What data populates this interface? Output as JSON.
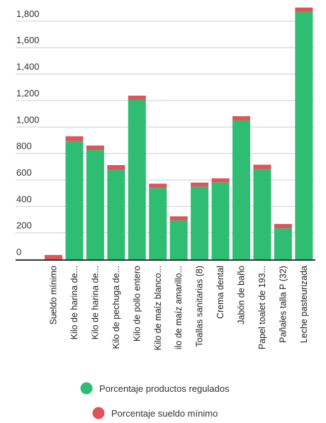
{
  "chart_data": {
    "type": "bar",
    "stacked": true,
    "categories": [
      "Sueldo mínimo",
      "Kilo de harina de...",
      "Kilo de harina de...",
      "Kilo de pechuga de...",
      "Kilo de pollo entero",
      "Kilo de maíz blanco...",
      "ilo de maíz amarillo...",
      "Toallas sanitarias (8)",
      "Crema dental",
      "Jabón de baño",
      "Papel toalet de 193...",
      "Pañales talla P (32)",
      "Leche pasteurizada"
    ],
    "series": [
      {
        "name": "Porcentaje productos regulados",
        "color": "#2ebd73",
        "values": [
          0,
          895,
          830,
          680,
          1205,
          540,
          295,
          550,
          582,
          1050,
          683,
          235,
          1870
        ]
      },
      {
        "name": "Porcentaje sueldo mínimo",
        "color": "#e05358",
        "values": [
          33,
          35,
          30,
          32,
          32,
          32,
          30,
          30,
          30,
          32,
          32,
          32,
          33
        ]
      }
    ],
    "yticks": [
      "0",
      "200",
      "400",
      "600",
      "800",
      "1,000",
      "1,200",
      "1,400",
      "1,600",
      "1,800"
    ],
    "ylim": [
      0,
      1900
    ],
    "grid": true,
    "legend": "bottom"
  }
}
